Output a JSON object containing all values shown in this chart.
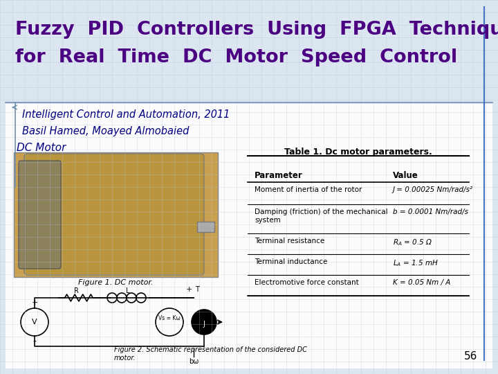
{
  "title_line1": "Fuzzy  PID  Controllers  Using  FPGA  Technique",
  "title_line2": "for  Real  Time  DC  Motor  Speed  Control",
  "subtitle1": "Intelligent Control and Automation, 2011",
  "subtitle2": "Basil Hamed, Moayed Almobaied",
  "subtitle3": "DC Motor",
  "title_color": "#4B0082",
  "subtitle_color": "#000080",
  "subtitle3_color": "#000080",
  "background_color": "#f0f4f8",
  "slide_bg": "#dce6f0",
  "table_title": "Table 1. Dc motor parameters.",
  "table_headers": [
    "Parameter",
    "Value"
  ],
  "table_rows": [
    [
      "Moment of inertia of the rotor",
      "J = 0.00025 Nm/rad/s²"
    ],
    [
      "Damping (friction) of the mechanical\nsystem",
      "b = 0.0001 Nm/rad/s"
    ],
    [
      "Terminal resistance",
      "RA = 0.5 Ω"
    ],
    [
      "Terminal inductance",
      "LA = 1.5 mH"
    ],
    [
      "Electromotive force constant",
      "K = 0.05 Nm / A"
    ]
  ],
  "fig1_caption": "Figure 1. DC motor.",
  "fig2_caption": "Figure 2. Schematic representation of the considered DC\nmotor.",
  "page_number": "56",
  "accent_color": "#4B0082",
  "grid_color": "#b0c4d8"
}
